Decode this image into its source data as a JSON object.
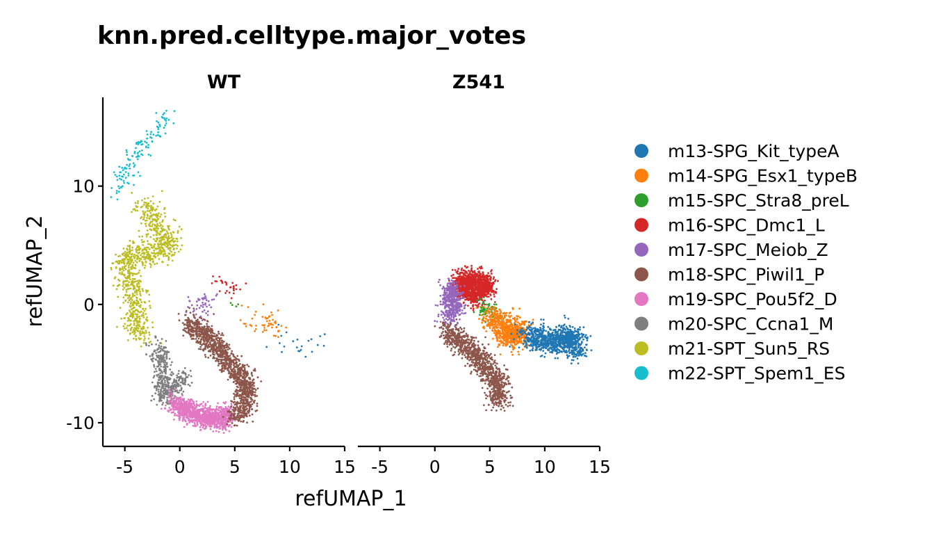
{
  "chart_data": {
    "type": "scatter",
    "title": "knn.pred.celltype.major_votes",
    "xlabel": "refUMAP_1",
    "ylabel": "refUMAP_2",
    "xlim": [
      -7,
      15
    ],
    "ylim": [
      -12,
      17.5
    ],
    "x_ticks": [
      -5,
      0,
      5,
      10,
      15
    ],
    "x_tick_labels": [
      "-5",
      "0",
      "5",
      "10",
      "15"
    ],
    "y_ticks": [
      -10,
      0,
      10
    ],
    "y_tick_labels": [
      "-10",
      "0",
      "10"
    ],
    "grid": false,
    "legend_position": "right",
    "panels": [
      {
        "name": "WT",
        "clusters": [
          {
            "series": "m22-SPT_Spem1_ES",
            "path": [
              [
                -1.0,
                16.0
              ],
              [
                -2.0,
                14.5
              ],
              [
                -3.3,
                13.5
              ],
              [
                -4.2,
                12.0
              ],
              [
                -5.3,
                10.2
              ],
              [
                -5.7,
                9.0
              ]
            ],
            "n": 130,
            "spread": 0.45
          },
          {
            "series": "m21-SPT_Sun5_RS",
            "path": [
              [
                -3.2,
                8.5
              ],
              [
                -1.8,
                6.3
              ],
              [
                -0.6,
                5.2
              ],
              [
                -2.5,
                4.3
              ],
              [
                -4.5,
                4.2
              ],
              [
                -5.2,
                3.2
              ],
              [
                -4.2,
                1.5
              ],
              [
                -3.8,
                0.0
              ],
              [
                -4.2,
                -1.5
              ],
              [
                -3.2,
                -2.8
              ]
            ],
            "n": 900,
            "spread": 0.55
          },
          {
            "series": "m20-SPC_Ccna1_M",
            "path": [
              [
                -2.0,
                -3.5
              ],
              [
                -1.5,
                -5.0
              ],
              [
                -1.5,
                -6.5
              ],
              [
                -1.5,
                -8.0
              ],
              [
                0.5,
                -6.0
              ]
            ],
            "n": 450,
            "spread": 0.45
          },
          {
            "series": "m19-SPC_Pou5f2_D",
            "path": [
              [
                -0.5,
                -8.3
              ],
              [
                0.8,
                -9.0
              ],
              [
                2.5,
                -9.6
              ],
              [
                3.7,
                -9.7
              ],
              [
                4.5,
                -9.3
              ]
            ],
            "n": 1100,
            "spread": 0.45
          },
          {
            "series": "m18-SPC_Piwil1_P",
            "path": [
              [
                0.8,
                -1.5
              ],
              [
                2.2,
                -2.5
              ],
              [
                3.8,
                -4.0
              ],
              [
                5.0,
                -5.5
              ],
              [
                6.0,
                -6.5
              ],
              [
                6.0,
                -8.5
              ],
              [
                5.0,
                -9.5
              ]
            ],
            "n": 1300,
            "spread": 0.5
          },
          {
            "series": "m17-SPC_Meiob_Z",
            "path": [
              [
                0.8,
                0.0
              ],
              [
                2.0,
                0.2
              ],
              [
                3.0,
                0.5
              ],
              [
                2.0,
                -0.8
              ]
            ],
            "n": 45,
            "spread": 0.4
          },
          {
            "series": "m16-SPC_Dmc1_L",
            "path": [
              [
                3.2,
                2.2
              ],
              [
                4.0,
                1.6
              ],
              [
                4.5,
                1.0
              ],
              [
                5.2,
                1.6
              ]
            ],
            "n": 30,
            "spread": 0.35
          },
          {
            "series": "m15-SPC_Stra8_preL",
            "path": [
              [
                4.7,
                0.3
              ],
              [
                4.9,
                -0.1
              ]
            ],
            "n": 4,
            "spread": 0.25
          },
          {
            "series": "m14-SPG_Esx1_typeB",
            "path": [
              [
                5.5,
                -1.3
              ],
              [
                7.0,
                -1.5
              ],
              [
                8.0,
                -1.0
              ],
              [
                8.0,
                -2.2
              ],
              [
                9.5,
                -1.8
              ]
            ],
            "n": 55,
            "spread": 0.5
          },
          {
            "series": "m13-SPG_Kit_typeA",
            "path": [
              [
                8.5,
                -3.0
              ],
              [
                9.5,
                -2.8
              ],
              [
                10.5,
                -3.3
              ],
              [
                11.5,
                -4.0
              ],
              [
                12.5,
                -2.8
              ]
            ],
            "n": 22,
            "spread": 0.6
          }
        ]
      },
      {
        "name": "Z541",
        "clusters": [
          {
            "series": "m16-SPC_Dmc1_L",
            "path": [
              [
                2.0,
                1.0
              ],
              [
                3.0,
                2.0
              ],
              [
                4.0,
                2.2
              ],
              [
                4.8,
                1.4
              ],
              [
                3.5,
                0.6
              ],
              [
                2.2,
                2.3
              ]
            ],
            "n": 1300,
            "spread": 0.45
          },
          {
            "series": "m17-SPC_Meiob_Z",
            "path": [
              [
                1.0,
                0.0
              ],
              [
                1.5,
                1.5
              ],
              [
                2.0,
                -0.6
              ],
              [
                1.0,
                -1.3
              ]
            ],
            "n": 420,
            "spread": 0.4
          },
          {
            "series": "m15-SPC_Stra8_preL",
            "path": [
              [
                4.3,
                0.0
              ],
              [
                4.8,
                -0.8
              ],
              [
                5.3,
                -0.3
              ]
            ],
            "n": 60,
            "spread": 0.35
          },
          {
            "series": "m18-SPC_Piwil1_P",
            "path": [
              [
                1.0,
                -2.2
              ],
              [
                2.5,
                -3.3
              ],
              [
                4.0,
                -4.5
              ],
              [
                5.2,
                -6.0
              ],
              [
                6.0,
                -7.2
              ],
              [
                5.7,
                -8.3
              ]
            ],
            "n": 1000,
            "spread": 0.5
          },
          {
            "series": "m14-SPG_Esx1_typeB",
            "path": [
              [
                5.0,
                -1.0
              ],
              [
                6.0,
                -1.7
              ],
              [
                7.0,
                -2.5
              ],
              [
                8.0,
                -2.3
              ],
              [
                6.5,
                -3.0
              ]
            ],
            "n": 800,
            "spread": 0.55
          },
          {
            "series": "m13-SPG_Kit_typeA",
            "path": [
              [
                8.5,
                -2.5
              ],
              [
                9.5,
                -3.0
              ],
              [
                10.5,
                -3.2
              ],
              [
                11.5,
                -3.0
              ],
              [
                12.5,
                -2.6
              ],
              [
                13.0,
                -4.0
              ]
            ],
            "n": 1000,
            "spread": 0.55
          }
        ]
      }
    ],
    "series": [
      {
        "name": "m13-SPG_Kit_typeA",
        "color": "#1f77b4"
      },
      {
        "name": "m14-SPG_Esx1_typeB",
        "color": "#ff7f0e"
      },
      {
        "name": "m15-SPC_Stra8_preL",
        "color": "#2ca02c"
      },
      {
        "name": "m16-SPC_Dmc1_L",
        "color": "#d62728"
      },
      {
        "name": "m17-SPC_Meiob_Z",
        "color": "#9467bd"
      },
      {
        "name": "m18-SPC_Piwil1_P",
        "color": "#8c564b"
      },
      {
        "name": "m19-SPC_Pou5f2_D",
        "color": "#e377c2"
      },
      {
        "name": "m20-SPC_Ccna1_M",
        "color": "#7f7f7f"
      },
      {
        "name": "m21-SPT_Sun5_RS",
        "color": "#bcbd22"
      },
      {
        "name": "m22-SPT_Spem1_ES",
        "color": "#17becf"
      }
    ]
  }
}
